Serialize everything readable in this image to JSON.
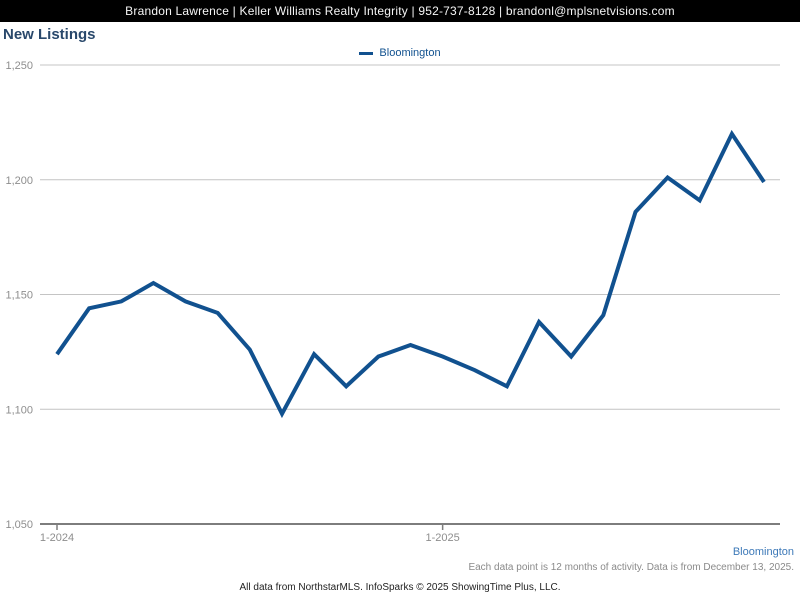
{
  "header": {
    "contact_line": "Brandon Lawrence | Keller Williams Realty Integrity | 952-737-8128 | brandonl@mplsnetvisions.com"
  },
  "title": "New Listings",
  "legend": {
    "label": "Bloomington",
    "color": "#11518f"
  },
  "chart_data": {
    "type": "line",
    "title": "New Listings",
    "xlabel": "",
    "ylabel": "",
    "ylim": [
      1050,
      1250
    ],
    "grid": "horizontal",
    "legend_position": "top-center",
    "x": [
      "1-2024",
      "2-2024",
      "3-2024",
      "4-2024",
      "5-2024",
      "6-2024",
      "7-2024",
      "8-2024",
      "9-2024",
      "10-2024",
      "11-2024",
      "12-2024",
      "1-2025",
      "2-2025",
      "3-2025",
      "4-2025",
      "5-2025",
      "6-2025",
      "7-2025",
      "8-2025",
      "9-2025",
      "10-2025",
      "11-2025"
    ],
    "series": [
      {
        "name": "Bloomington",
        "color": "#11518f",
        "values": [
          1124,
          1144,
          1147,
          1155,
          1147,
          1142,
          1126,
          1098,
          1124,
          1110,
          1123,
          1128,
          1123,
          1117,
          1110,
          1138,
          1123,
          1141,
          1186,
          1201,
          1191,
          1220,
          1199
        ]
      }
    ],
    "y_ticks": [
      {
        "label": "1,250",
        "value": 1250
      },
      {
        "label": "1,200",
        "value": 1200
      },
      {
        "label": "1,150",
        "value": 1150
      },
      {
        "label": "1,100",
        "value": 1100
      },
      {
        "label": "1,050",
        "value": 1050
      }
    ],
    "x_ticks": [
      {
        "label": "1-2024",
        "index": 0
      },
      {
        "label": "1-2025",
        "index": 12
      }
    ]
  },
  "footer": {
    "region_link": "Bloomington",
    "note": "Each data point is 12 months of activity. Data is from December 13, 2025.",
    "attribution": "All data from NorthstarMLS. InfoSparks © 2025 ShowingTime Plus, LLC."
  }
}
